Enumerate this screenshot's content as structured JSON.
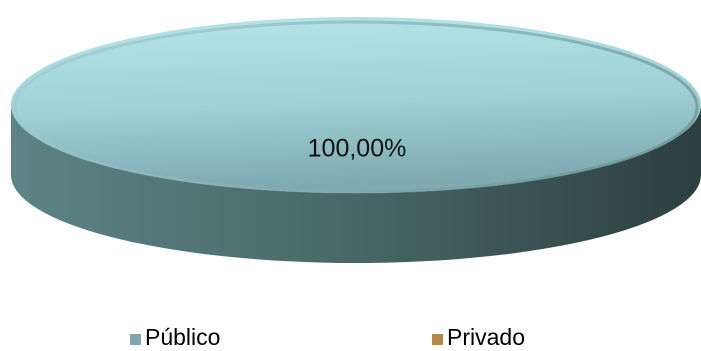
{
  "chart_data": {
    "type": "pie",
    "style": "3d",
    "categories": [
      "Público",
      "Privado"
    ],
    "values": [
      100,
      0
    ],
    "data_labels": [
      "100,00%"
    ],
    "legend_position": "bottom",
    "colors": {
      "Público": "#9fd3d8",
      "Privado": "#c08a4a"
    },
    "side_colors": {
      "Público": "#4f7172"
    }
  },
  "legend": {
    "items": [
      {
        "label": "Público",
        "color": "#7fa8ae"
      },
      {
        "label": "Privado",
        "color": "#b5874a"
      }
    ]
  }
}
